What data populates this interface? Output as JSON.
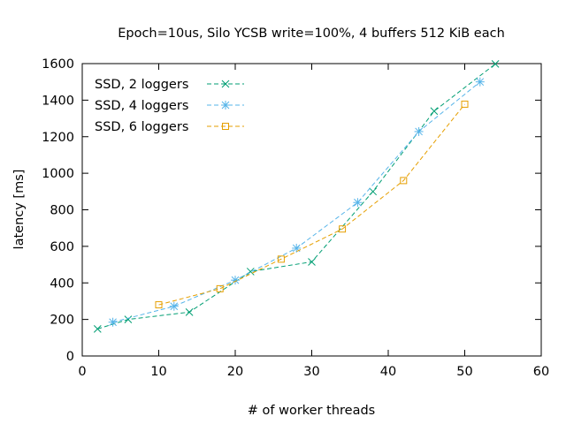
{
  "chart_data": {
    "type": "line",
    "title": "Epoch=10us, Silo YCSB write=100%, 4 buffers 512 KiB each",
    "xlabel": "# of worker threads",
    "ylabel": "latency [ms]",
    "xlim": [
      0,
      60
    ],
    "ylim": [
      0,
      1600
    ],
    "xticks": [
      0,
      10,
      20,
      30,
      40,
      50,
      60
    ],
    "yticks": [
      0,
      200,
      400,
      600,
      800,
      1000,
      1200,
      1400,
      1600
    ],
    "grid": false,
    "legend_position": "top-left",
    "series": [
      {
        "name": "SSD, 2 loggers",
        "color": "#009e73",
        "marker": "x",
        "x": [
          2,
          6,
          14,
          22,
          30,
          38,
          46,
          54
        ],
        "y": [
          148,
          200,
          240,
          462,
          515,
          900,
          1340,
          1598
        ]
      },
      {
        "name": "SSD, 4 loggers",
        "color": "#56b4e9",
        "marker": "asterisk",
        "x": [
          4,
          12,
          20,
          28,
          36,
          44,
          52
        ],
        "y": [
          185,
          272,
          415,
          590,
          840,
          1228,
          1500
        ]
      },
      {
        "name": "SSD, 6 loggers",
        "color": "#e69f00",
        "marker": "square",
        "x": [
          10,
          18,
          26,
          34,
          42,
          50
        ],
        "y": [
          280,
          368,
          530,
          695,
          960,
          1378
        ]
      }
    ]
  }
}
